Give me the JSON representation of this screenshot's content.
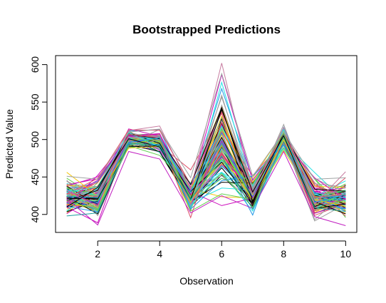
{
  "chart_data": {
    "type": "line",
    "title": "Bootstrapped Predictions",
    "xlabel": "Observation",
    "ylabel": "Predicted Value",
    "xlim": [
      0.64,
      10.36
    ],
    "ylim": [
      376,
      612
    ],
    "x_ticks": [
      2,
      4,
      6,
      8,
      10
    ],
    "y_ticks": [
      400,
      450,
      500,
      550,
      600
    ],
    "x": [
      1,
      2,
      3,
      4,
      5,
      6,
      7,
      8,
      9,
      10
    ],
    "grid": false,
    "legend": "none",
    "series_count": 100,
    "center_values": [
      424,
      422,
      502,
      497,
      423,
      495,
      427,
      502,
      421,
      423
    ],
    "spread_values": [
      12,
      13,
      6,
      7,
      11,
      36,
      10,
      7,
      12,
      11
    ],
    "extreme_series": [
      {
        "color": "#C77CA0",
        "values": [
          432,
          410,
          512,
          518,
          434,
          602,
          430,
          516,
          414,
          457
        ]
      },
      {
        "color": "#9FA3A3",
        "values": [
          451,
          447,
          510,
          514,
          449,
          588,
          451,
          510,
          447,
          449
        ]
      },
      {
        "color": "#C11FC1",
        "values": [
          421,
          386,
          484,
          474,
          402,
          425,
          408,
          484,
          397,
          385
        ]
      },
      {
        "color": "#000000",
        "values": [
          410,
          436,
          501,
          490,
          420,
          540,
          430,
          505,
          408,
          414
        ]
      },
      {
        "color": "#1A9E9E",
        "values": [
          398,
          402,
          495,
          492,
          420,
          478,
          407,
          497,
          409,
          404
        ]
      }
    ],
    "palette": [
      "#000000",
      "#DF536B",
      "#61D04F",
      "#2297E6",
      "#28E2E5",
      "#CD0BBC",
      "#F5C710",
      "#9E9E9E"
    ]
  }
}
